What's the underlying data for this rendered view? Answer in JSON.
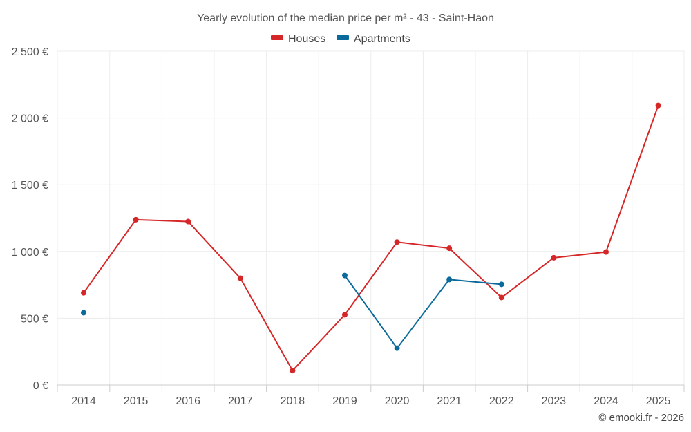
{
  "chart_data": {
    "type": "line",
    "title": "Yearly evolution of the median price per m² - 43 - Saint-Haon",
    "categories": [
      "2014",
      "2015",
      "2016",
      "2017",
      "2018",
      "2019",
      "2020",
      "2021",
      "2022",
      "2023",
      "2024",
      "2025"
    ],
    "series": [
      {
        "name": "Houses",
        "color": "#d62728",
        "values": [
          690,
          1238,
          1224,
          800,
          108,
          526,
          1070,
          1024,
          655,
          953,
          996,
          2093
        ]
      },
      {
        "name": "Apartments",
        "color": "#0a6a9b",
        "values": [
          541,
          null,
          null,
          null,
          null,
          820,
          276,
          790,
          754,
          null,
          null,
          null
        ]
      }
    ],
    "ylim": [
      0,
      2500
    ],
    "yticks": [
      0,
      500,
      1000,
      1500,
      2000,
      2500
    ],
    "ytick_labels": [
      "0 €",
      "500 €",
      "1 000 €",
      "1 500 €",
      "2 000 €",
      "2 500 €"
    ],
    "xlabel": "",
    "ylabel": "",
    "grid": true,
    "legend_position": "top-center"
  },
  "credit": "© emooki.fr - 2026"
}
